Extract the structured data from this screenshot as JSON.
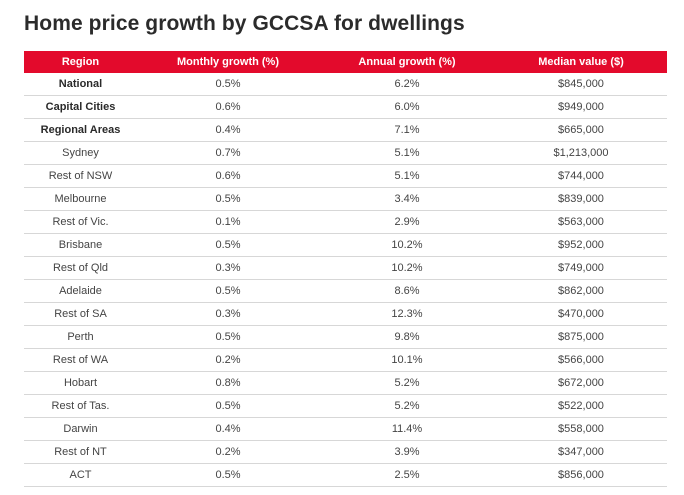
{
  "title": "Home price growth by GCCSA for dwellings",
  "colors": {
    "header_bg": "#e30a2c",
    "header_text": "#ffffff",
    "row_divider": "#d7d7d7"
  },
  "table": {
    "headers": [
      "Region",
      "Monthly growth (%)",
      "Annual growth (%)",
      "Median value ($)"
    ],
    "rows": [
      {
        "region": "National",
        "monthly": "0.5%",
        "annual": "6.2%",
        "median": "$845,000",
        "bold": true
      },
      {
        "region": "Capital Cities",
        "monthly": "0.6%",
        "annual": "6.0%",
        "median": "$949,000",
        "bold": true
      },
      {
        "region": "Regional Areas",
        "monthly": "0.4%",
        "annual": "7.1%",
        "median": "$665,000",
        "bold": true
      },
      {
        "region": "Sydney",
        "monthly": "0.7%",
        "annual": "5.1%",
        "median": "$1,213,000",
        "bold": false
      },
      {
        "region": "Rest of NSW",
        "monthly": "0.6%",
        "annual": "5.1%",
        "median": "$744,000",
        "bold": false
      },
      {
        "region": "Melbourne",
        "monthly": "0.5%",
        "annual": "3.4%",
        "median": "$839,000",
        "bold": false
      },
      {
        "region": "Rest of Vic.",
        "monthly": "0.1%",
        "annual": "2.9%",
        "median": "$563,000",
        "bold": false
      },
      {
        "region": "Brisbane",
        "monthly": "0.5%",
        "annual": "10.2%",
        "median": "$952,000",
        "bold": false
      },
      {
        "region": "Rest of Qld",
        "monthly": "0.3%",
        "annual": "10.2%",
        "median": "$749,000",
        "bold": false
      },
      {
        "region": "Adelaide",
        "monthly": "0.5%",
        "annual": "8.6%",
        "median": "$862,000",
        "bold": false
      },
      {
        "region": "Rest of SA",
        "monthly": "0.3%",
        "annual": "12.3%",
        "median": "$470,000",
        "bold": false
      },
      {
        "region": "Perth",
        "monthly": "0.5%",
        "annual": "9.8%",
        "median": "$875,000",
        "bold": false
      },
      {
        "region": "Rest of WA",
        "monthly": "0.2%",
        "annual": "10.1%",
        "median": "$566,000",
        "bold": false
      },
      {
        "region": "Hobart",
        "monthly": "0.8%",
        "annual": "5.2%",
        "median": "$672,000",
        "bold": false
      },
      {
        "region": "Rest of Tas.",
        "monthly": "0.5%",
        "annual": "5.2%",
        "median": "$522,000",
        "bold": false
      },
      {
        "region": "Darwin",
        "monthly": "0.4%",
        "annual": "11.4%",
        "median": "$558,000",
        "bold": false
      },
      {
        "region": "Rest of NT",
        "monthly": "0.2%",
        "annual": "3.9%",
        "median": "$347,000",
        "bold": false
      },
      {
        "region": "ACT",
        "monthly": "0.5%",
        "annual": "2.5%",
        "median": "$856,000",
        "bold": false
      }
    ]
  }
}
